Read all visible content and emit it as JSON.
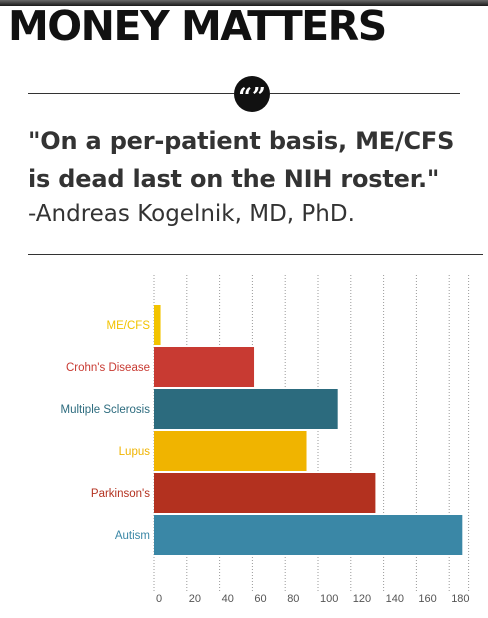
{
  "header": {
    "title": "MONEY MATTERS"
  },
  "quote": {
    "icon": "quote-marks-icon",
    "text": "\"On a per-patient basis, ME/CFS is dead last on the NIH roster.\"",
    "attribution": "-Andreas Kogelnik, MD, PhD."
  },
  "chart_data": {
    "type": "bar",
    "orientation": "horizontal",
    "categories": [
      "ME/CFS",
      "Crohn's Disease",
      "Multiple Sclerosis",
      "Lupus",
      "Parkinson's",
      "Autism"
    ],
    "values": [
      4,
      61,
      112,
      93,
      135,
      188
    ],
    "colors": [
      "#f2c300",
      "#c83a32",
      "#2c6b7e",
      "#f0b400",
      "#b3311f",
      "#3a87a6"
    ],
    "xticks": [
      0,
      20,
      40,
      60,
      80,
      100,
      120,
      140,
      160,
      180
    ],
    "xlim": [
      0,
      190
    ],
    "grid": "vertical dotted",
    "title": "",
    "xlabel": "",
    "ylabel": ""
  }
}
